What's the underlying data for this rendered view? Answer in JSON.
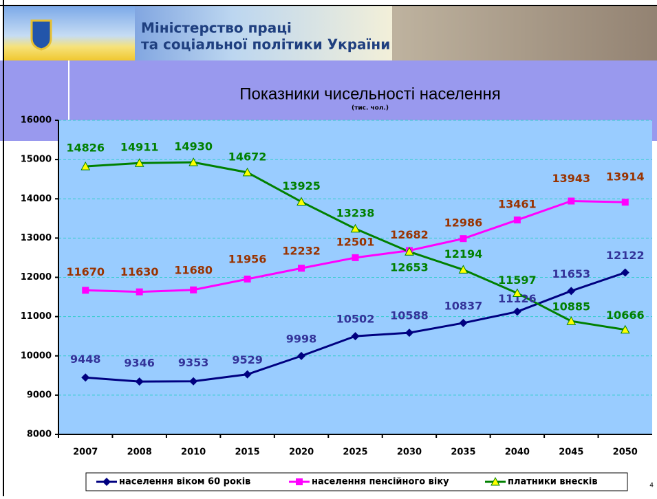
{
  "header": {
    "line1": "Міністерство праці",
    "line2": "та соціальної політики України"
  },
  "page_number": "4",
  "chart_data": {
    "type": "line",
    "title": "Показники чисельності населення",
    "subtitle": "(тис. чол.)",
    "categories": [
      "2007",
      "2008",
      "2010",
      "2015",
      "2020",
      "2025",
      "2030",
      "2035",
      "2040",
      "2045",
      "2050"
    ],
    "series": [
      {
        "name": "населення віком 60 років",
        "color": "#000080",
        "label_color": "#333399",
        "marker": "diamond",
        "marker_color": "#000080",
        "values": [
          9448,
          9346,
          9353,
          9529,
          9998,
          10502,
          10588,
          10837,
          11126,
          11653,
          12122
        ]
      },
      {
        "name": "населення пенсійного віку",
        "color": "#ff00ff",
        "label_color": "#993300",
        "marker": "square",
        "marker_color": "#ff00ff",
        "values": [
          11670,
          11630,
          11680,
          11956,
          12232,
          12501,
          12682,
          12986,
          13461,
          13943,
          13914
        ]
      },
      {
        "name": "платники внесків",
        "color": "#008000",
        "label_color": "#008000",
        "marker": "triangle",
        "marker_color": "#ffff00",
        "values": [
          14826,
          14911,
          14930,
          14672,
          13925,
          13238,
          12653,
          12194,
          11597,
          10885,
          10666
        ]
      }
    ],
    "ylim": [
      8000,
      16000
    ],
    "yticks": [
      8000,
      9000,
      10000,
      11000,
      12000,
      13000,
      14000,
      15000,
      16000
    ],
    "grid": true,
    "legend": "bottom",
    "plot_color": "#99ccff"
  }
}
